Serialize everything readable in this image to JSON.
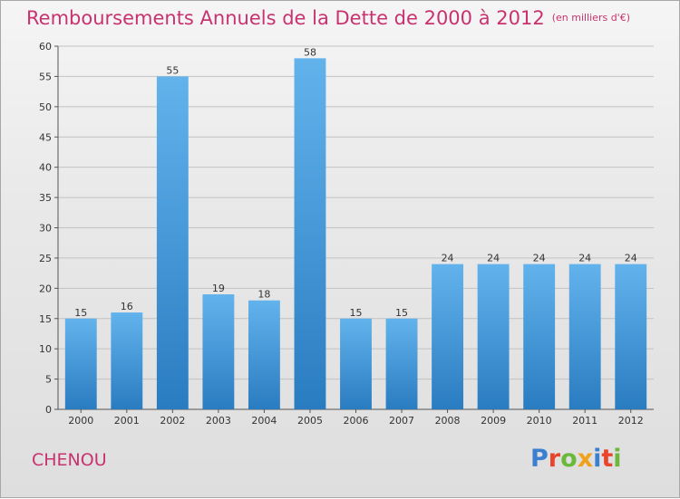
{
  "header": {
    "title": "Remboursements Annuels de la Dette de 2000 à 2012",
    "unit": "(en milliers d'€)"
  },
  "footer": {
    "place": "CHENOU",
    "logo_text": "Proxiti",
    "logo_colors": [
      "#3a7fd0",
      "#e8452c",
      "#6bb83a",
      "#f0a21c",
      "#3a7fd0",
      "#e8452c",
      "#6bb83a"
    ]
  },
  "colors": {
    "accent": "#c8326e",
    "bar_light": "#62b3ec",
    "bar_dark": "#2a7cc1",
    "grid": "#c2c2c2"
  },
  "chart_data": {
    "type": "bar",
    "title": "Remboursements Annuels de la Dette de 2000 à 2012",
    "ylabel": "(en milliers d'€)",
    "categories": [
      "2000",
      "2001",
      "2002",
      "2003",
      "2004",
      "2005",
      "2006",
      "2007",
      "2008",
      "2009",
      "2010",
      "2011",
      "2012"
    ],
    "values": [
      15,
      16,
      55,
      19,
      18,
      58,
      15,
      15,
      24,
      24,
      24,
      24,
      24
    ],
    "ylim": [
      0,
      60
    ],
    "yticks": [
      0,
      5,
      10,
      15,
      20,
      25,
      30,
      35,
      40,
      45,
      50,
      55,
      60
    ],
    "grid": true
  }
}
